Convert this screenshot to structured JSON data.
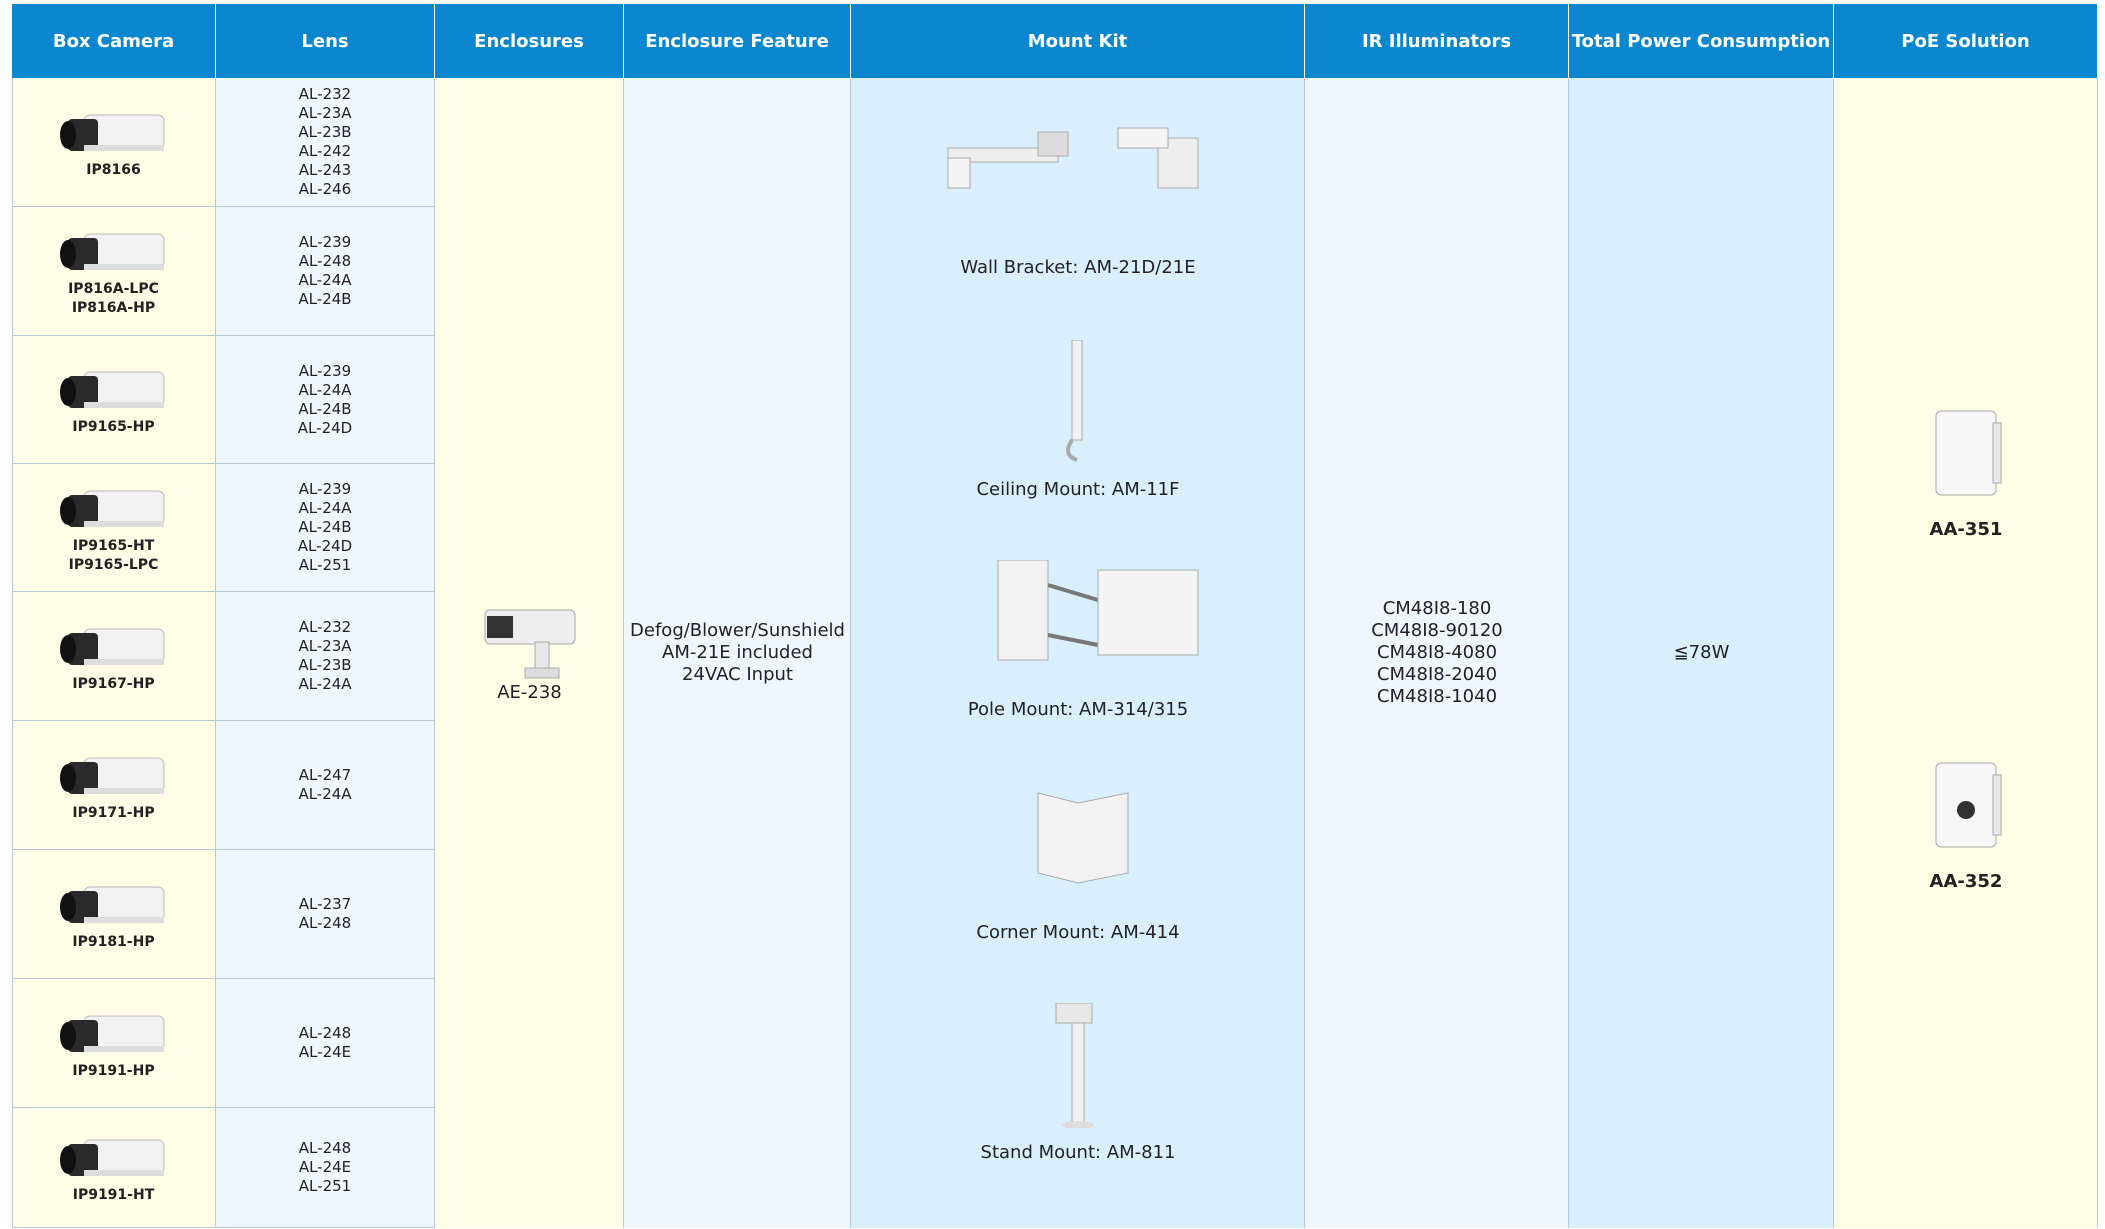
{
  "header": {
    "columns": [
      "Box Camera",
      "Lens",
      "Enclosures",
      "Enclosure Feature",
      "Mount Kit",
      "IR Illuminators",
      "Total Power Consumption",
      "PoE Solution"
    ]
  },
  "rows": [
    {
      "camera": [
        "IP8166"
      ],
      "lens": [
        "AL-232",
        "AL-23A",
        "AL-23B",
        "AL-242",
        "AL-243",
        "AL-246"
      ]
    },
    {
      "camera": [
        "IP816A-LPC",
        "IP816A-HP"
      ],
      "lens": [
        "AL-239",
        "AL-248",
        "AL-24A",
        "AL-24B"
      ]
    },
    {
      "camera": [
        "IP9165-HP"
      ],
      "lens": [
        "AL-239",
        "AL-24A",
        "AL-24B",
        "AL-24D"
      ]
    },
    {
      "camera": [
        "IP9165-HT",
        "IP9165-LPC"
      ],
      "lens": [
        "AL-239",
        "AL-24A",
        "AL-24B",
        "AL-24D",
        "AL-251"
      ]
    },
    {
      "camera": [
        "IP9167-HP"
      ],
      "lens": [
        "AL-232",
        "AL-23A",
        "AL-23B",
        "AL-24A"
      ]
    },
    {
      "camera": [
        "IP9171-HP"
      ],
      "lens": [
        "AL-247",
        "AL-24A"
      ]
    },
    {
      "camera": [
        "IP9181-HP"
      ],
      "lens": [
        "AL-237",
        "AL-248"
      ]
    },
    {
      "camera": [
        "IP9191-HP"
      ],
      "lens": [
        "AL-248",
        "AL-24E"
      ]
    },
    {
      "camera": [
        "IP9191-HT"
      ],
      "lens": [
        "AL-248",
        "AL-24E",
        "AL-251"
      ]
    }
  ],
  "enclosure": "AE-238",
  "enclosure_feature": [
    "Defog/Blower/Sunshield",
    "AM-21E included",
    "24VAC Input"
  ],
  "mount_kits": [
    "Wall Bracket: AM-21D/21E",
    "Ceiling Mount: AM-11F",
    "Pole Mount: AM-314/315",
    "Corner Mount: AM-414",
    "Stand Mount: AM-811"
  ],
  "ir_illuminators": [
    "CM48I8-180",
    "CM48I8-90120",
    "CM48I8-4080",
    "CM48I8-2040",
    "CM48I8-1040"
  ],
  "total_power": "≦78W",
  "poe": [
    "AA-351",
    "AA-352"
  ]
}
